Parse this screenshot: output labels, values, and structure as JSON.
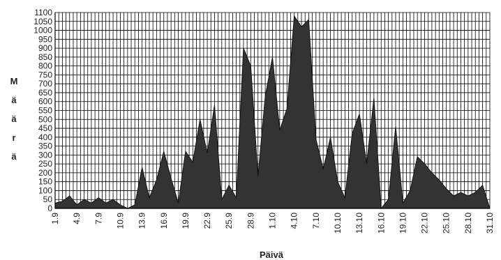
{
  "chart_data": {
    "type": "area",
    "xlabel": "Päivä",
    "ylabel": "Määrä",
    "ylim": [
      0,
      1100
    ],
    "ytick_step": 50,
    "grid": true,
    "colors": {
      "fill": "#333333",
      "grid": "#000000",
      "background": "#ffffff"
    },
    "x_tick_labels": [
      "1.9",
      "4.9",
      "7.9",
      "10.9",
      "13.9",
      "16.9",
      "19.9",
      "22.9",
      "25.9",
      "28.9",
      "1.10",
      "4.10",
      "7.10",
      "10.10",
      "13.10",
      "16.10",
      "19.10",
      "22.10",
      "25.10",
      "28.10",
      "31.10"
    ],
    "y_tick_labels": [
      "0",
      "50",
      "100",
      "150",
      "200",
      "250",
      "300",
      "350",
      "400",
      "450",
      "500",
      "550",
      "600",
      "650",
      "700",
      "750",
      "800",
      "850",
      "900",
      "950",
      "1000",
      "1050",
      "1100"
    ],
    "categories": [
      "1.9",
      "2.9",
      "3.9",
      "4.9",
      "5.9",
      "6.9",
      "7.9",
      "8.9",
      "9.9",
      "10.9",
      "11.9",
      "12.9",
      "13.9",
      "14.9",
      "15.9",
      "16.9",
      "17.9",
      "18.9",
      "19.9",
      "20.9",
      "21.9",
      "22.9",
      "23.9",
      "24.9",
      "25.9",
      "26.9",
      "27.9",
      "28.9",
      "29.9",
      "30.9",
      "1.10",
      "2.10",
      "3.10",
      "4.10",
      "5.10",
      "6.10",
      "7.10",
      "8.10",
      "9.10",
      "10.10",
      "11.10",
      "12.10",
      "13.10",
      "14.10",
      "15.10",
      "16.10",
      "17.10",
      "18.10",
      "19.10",
      "20.10",
      "21.10",
      "22.10",
      "23.10",
      "24.10",
      "25.10",
      "26.10",
      "27.10",
      "28.10",
      "29.10",
      "30.10",
      "31.10"
    ],
    "series": [
      {
        "values": [
          30,
          40,
          70,
          20,
          50,
          30,
          60,
          30,
          50,
          20,
          0,
          20,
          230,
          60,
          160,
          320,
          170,
          30,
          320,
          260,
          500,
          310,
          580,
          50,
          130,
          60,
          900,
          800,
          180,
          630,
          850,
          440,
          560,
          1080,
          1020,
          1060,
          390,
          220,
          400,
          150,
          60,
          420,
          530,
          250,
          620,
          0,
          50,
          460,
          30,
          100,
          290,
          250,
          200,
          160,
          110,
          70,
          90,
          70,
          90,
          130,
          0
        ]
      }
    ]
  }
}
